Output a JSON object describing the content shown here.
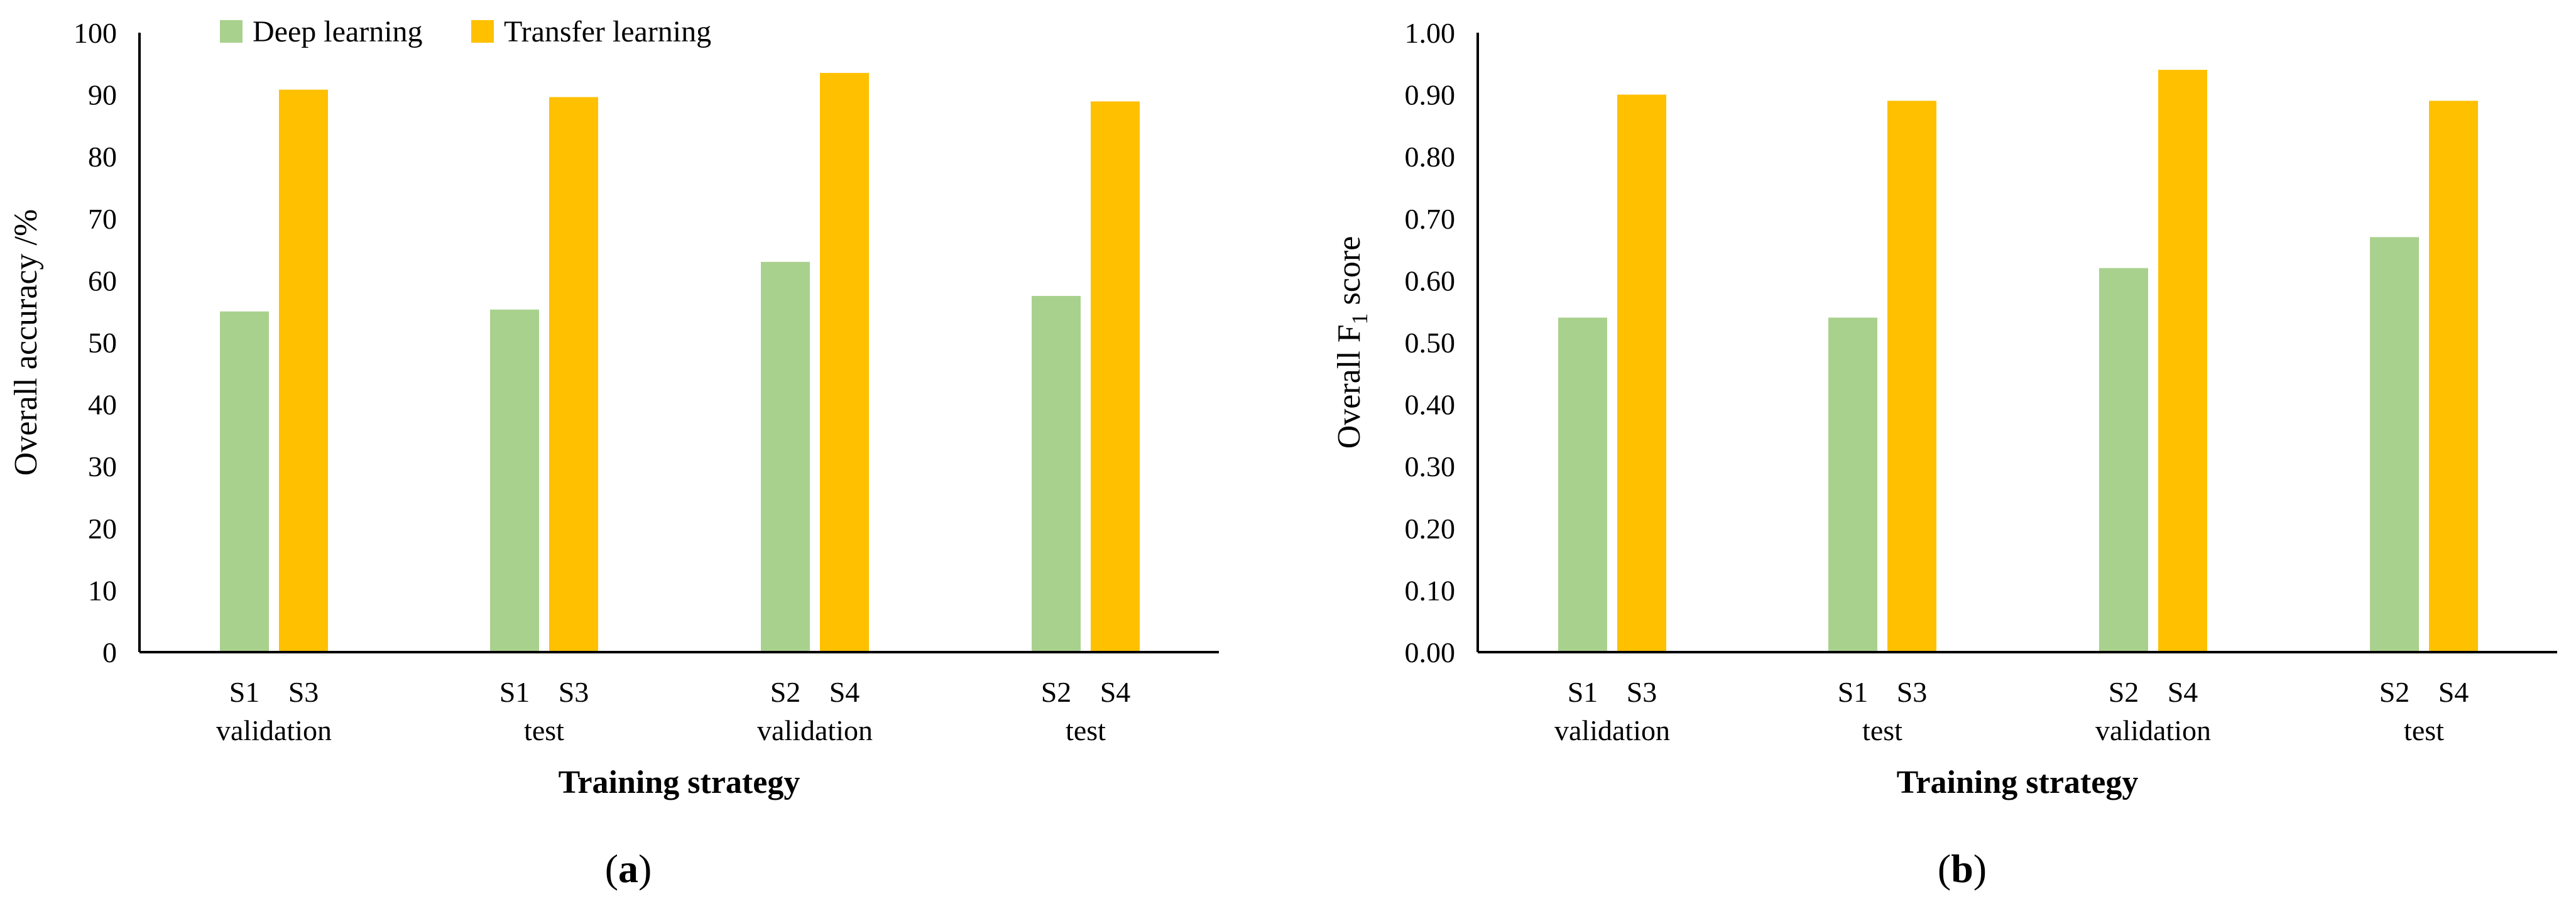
{
  "chart_data": [
    {
      "panel": "(a)",
      "type": "bar",
      "ylabel": "Overall accuracy /%",
      "xlabel": "Training strategy",
      "ylim": [
        0,
        100
      ],
      "yticks": [
        "0",
        "10",
        "20",
        "30",
        "40",
        "50",
        "60",
        "70",
        "80",
        "90",
        "100"
      ],
      "legend_position": "top-left",
      "groups": [
        {
          "label": "validation",
          "tick_labels": [
            "S1",
            "S3"
          ]
        },
        {
          "label": "test",
          "tick_labels": [
            "S1",
            "S3"
          ]
        },
        {
          "label": "validation",
          "tick_labels": [
            "S2",
            "S4"
          ]
        },
        {
          "label": "test",
          "tick_labels": [
            "S2",
            "S4"
          ]
        }
      ],
      "series": [
        {
          "name": "Deep learning",
          "color": "#a9d18e",
          "values": [
            55.0,
            55.3,
            63.0,
            57.5
          ]
        },
        {
          "name": "Transfer learning",
          "color": "#ffc000",
          "values": [
            90.8,
            89.6,
            93.5,
            88.9
          ]
        }
      ],
      "grid": false
    },
    {
      "panel": "(b)",
      "type": "bar",
      "ylabel": "Overall F1 score",
      "ylabel_parts": [
        "Overall F",
        "1",
        " score"
      ],
      "xlabel": "Training strategy",
      "ylim": [
        0,
        1
      ],
      "yticks": [
        "0.00",
        "0.10",
        "0.20",
        "0.30",
        "0.40",
        "0.50",
        "0.60",
        "0.70",
        "0.80",
        "0.90",
        "1.00"
      ],
      "groups": [
        {
          "label": "validation",
          "tick_labels": [
            "S1",
            "S3"
          ]
        },
        {
          "label": "test",
          "tick_labels": [
            "S1",
            "S3"
          ]
        },
        {
          "label": "validation",
          "tick_labels": [
            "S2",
            "S4"
          ]
        },
        {
          "label": "test",
          "tick_labels": [
            "S2",
            "S4"
          ]
        }
      ],
      "series": [
        {
          "name": "Deep learning",
          "color": "#a9d18e",
          "values": [
            0.54,
            0.54,
            0.62,
            0.67
          ]
        },
        {
          "name": "Transfer learning",
          "color": "#ffc000",
          "values": [
            0.9,
            0.89,
            0.94,
            0.89
          ]
        }
      ],
      "grid": false
    }
  ]
}
